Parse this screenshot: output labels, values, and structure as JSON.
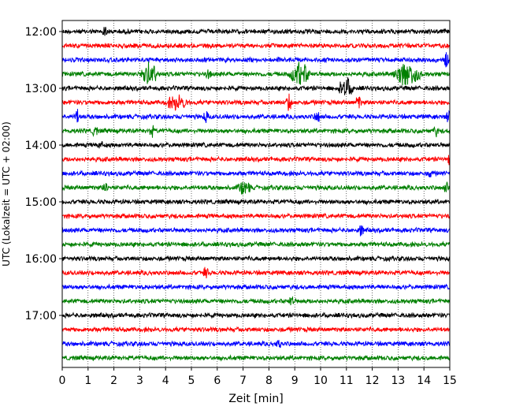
{
  "chart_data": {
    "type": "line",
    "xlabel": "Zeit  [min]",
    "ylabel": "UTC (Lokalzeit = UTC + 02:00)",
    "xlim": [
      0,
      15
    ],
    "x_ticks": [
      "0",
      "1",
      "2",
      "3",
      "4",
      "5",
      "6",
      "7",
      "8",
      "9",
      "10",
      "11",
      "12",
      "13",
      "14",
      "15"
    ],
    "y_ticks": [
      "12:00",
      "13:00",
      "14:00",
      "15:00",
      "16:00",
      "17:00"
    ],
    "grid": "vertical dotted",
    "trace_interval_minutes": 15,
    "colors": [
      "#000000",
      "#ff0000",
      "#0000ff",
      "#008000"
    ],
    "series": [
      {
        "start": "12:00",
        "color": "#000000",
        "events": [
          {
            "t": 1.6,
            "amp": 1.4
          }
        ]
      },
      {
        "start": "12:15",
        "color": "#ff0000",
        "events": []
      },
      {
        "start": "12:30",
        "color": "#0000ff",
        "events": [
          {
            "t": 14.8,
            "amp": 2.0
          }
        ]
      },
      {
        "start": "12:45",
        "color": "#008000",
        "events": [
          {
            "t": 3.0,
            "dur": 1.0,
            "amp": 3.2
          },
          {
            "t": 5.6,
            "amp": 1.4
          },
          {
            "t": 8.8,
            "dur": 1.1,
            "amp": 3.5
          },
          {
            "t": 12.8,
            "dur": 1.5,
            "amp": 3.5
          }
        ]
      },
      {
        "start": "13:00",
        "color": "#000000",
        "events": [
          {
            "t": 10.7,
            "dur": 0.8,
            "amp": 2.8
          }
        ]
      },
      {
        "start": "13:15",
        "color": "#ff0000",
        "events": [
          {
            "t": 4.0,
            "dur": 1.2,
            "amp": 2.0
          },
          {
            "t": 8.7,
            "amp": 2.8
          },
          {
            "t": 11.4,
            "amp": 2.0
          }
        ]
      },
      {
        "start": "13:30",
        "color": "#0000ff",
        "events": [
          {
            "t": 0.5,
            "amp": 2.0
          },
          {
            "t": 5.5,
            "amp": 1.5
          },
          {
            "t": 9.8,
            "amp": 2.0
          },
          {
            "t": 14.9,
            "amp": 1.6
          }
        ]
      },
      {
        "start": "13:45",
        "color": "#008000",
        "events": [
          {
            "t": 1.2,
            "amp": 1.4
          },
          {
            "t": 3.4,
            "amp": 1.4
          },
          {
            "t": 14.4,
            "amp": 1.3
          }
        ]
      },
      {
        "start": "14:00",
        "color": "#000000",
        "events": [
          {
            "t": 1.4,
            "amp": 1.2
          }
        ]
      },
      {
        "start": "14:15",
        "color": "#ff0000",
        "events": [
          {
            "t": 14.9,
            "amp": 1.3
          }
        ]
      },
      {
        "start": "14:30",
        "color": "#0000ff",
        "events": [
          {
            "t": 14.2,
            "amp": 1.2
          }
        ]
      },
      {
        "start": "14:45",
        "color": "#008000",
        "events": [
          {
            "t": 1.6,
            "amp": 1.5
          },
          {
            "t": 6.8,
            "dur": 0.7,
            "amp": 2.0
          },
          {
            "t": 14.8,
            "amp": 1.3
          }
        ]
      },
      {
        "start": "15:00",
        "color": "#000000",
        "events": []
      },
      {
        "start": "15:15",
        "color": "#ff0000",
        "events": []
      },
      {
        "start": "15:30",
        "color": "#0000ff",
        "events": [
          {
            "t": 11.5,
            "amp": 1.5
          }
        ]
      },
      {
        "start": "15:45",
        "color": "#008000",
        "events": []
      },
      {
        "start": "16:00",
        "color": "#000000",
        "events": []
      },
      {
        "start": "16:15",
        "color": "#ff0000",
        "events": [
          {
            "t": 5.5,
            "amp": 1.4
          }
        ]
      },
      {
        "start": "16:30",
        "color": "#0000ff",
        "events": []
      },
      {
        "start": "16:45",
        "color": "#008000",
        "events": [
          {
            "t": 8.8,
            "amp": 1.4
          }
        ]
      },
      {
        "start": "17:00",
        "color": "#000000",
        "events": []
      },
      {
        "start": "17:15",
        "color": "#ff0000",
        "events": []
      },
      {
        "start": "17:30",
        "color": "#0000ff",
        "events": [
          {
            "t": 8.3,
            "amp": 1.3
          }
        ]
      },
      {
        "start": "17:45",
        "color": "#008000",
        "events": []
      }
    ]
  }
}
